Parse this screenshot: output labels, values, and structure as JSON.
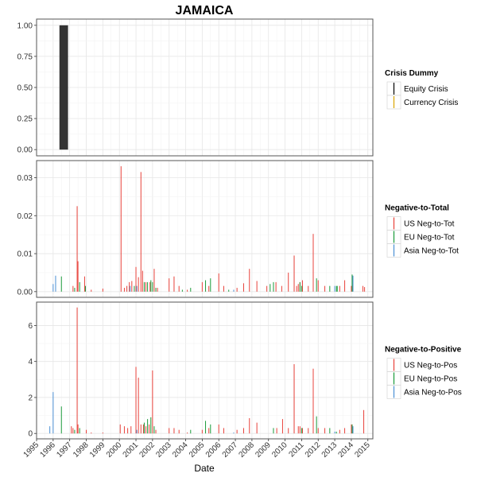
{
  "chart_data": {
    "type": "bar",
    "title": "JAMAICA",
    "xlabel": "Date",
    "x_ticks": [
      "1995",
      "1996",
      "1997",
      "1998",
      "1999",
      "2000",
      "2001",
      "2002",
      "2003",
      "2004",
      "2005",
      "2006",
      "2007",
      "2008",
      "2009",
      "2010",
      "2011",
      "2012",
      "2013",
      "2014",
      "2015"
    ],
    "xlim": [
      1995,
      2015.3
    ],
    "grid": true,
    "panels": [
      {
        "id": "crisis",
        "ylim": [
          -0.05,
          1.05
        ],
        "y_ticks": [
          0.0,
          0.25,
          0.5,
          0.75,
          1.0
        ],
        "y_tick_labels": [
          "0.00",
          "0.25",
          "0.50",
          "0.75",
          "1.00"
        ],
        "legend_title": "Crisis Dummy",
        "series": [
          {
            "name": "Equity Crisis",
            "color": "#000000",
            "bars": []
          },
          {
            "name": "Currency Crisis",
            "color": "#d9a400",
            "bars": []
          }
        ],
        "blocks": [
          {
            "x_start": 1996.38,
            "x_end": 1996.9,
            "value": 1.0,
            "color": "#333333"
          }
        ]
      },
      {
        "id": "neg-to-total",
        "ylim": [
          -0.0015,
          0.0345
        ],
        "y_ticks": [
          0.0,
          0.01,
          0.02,
          0.03
        ],
        "y_tick_labels": [
          "0.00",
          "0.01",
          "0.02",
          "0.03"
        ],
        "legend_title": "Negative-to-Total",
        "series": [
          {
            "name": "US Neg-to-Tot",
            "color": "#e8413a",
            "bars": [
              [
                1997.2,
                0.0015
              ],
              [
                1997.45,
                0.0225
              ],
              [
                1997.5,
                0.008
              ],
              [
                1997.9,
                0.004
              ],
              [
                1998.3,
                0.0005
              ],
              [
                1999.0,
                0.0008
              ],
              [
                2000.1,
                0.033
              ],
              [
                2000.3,
                0.001
              ],
              [
                2000.45,
                0.0015
              ],
              [
                2000.6,
                0.0025
              ],
              [
                2000.75,
                0.0028
              ],
              [
                2001.0,
                0.0065
              ],
              [
                2001.15,
                0.0038
              ],
              [
                2001.3,
                0.0315
              ],
              [
                2001.4,
                0.0055
              ],
              [
                2001.6,
                0.0025
              ],
              [
                2001.85,
                0.0025
              ],
              [
                2002.1,
                0.006
              ],
              [
                2002.3,
                0.001
              ],
              [
                2003.0,
                0.0035
              ],
              [
                2003.3,
                0.004
              ],
              [
                2003.6,
                0.0015
              ],
              [
                2004.1,
                0.0005
              ],
              [
                2005.0,
                0.0025
              ],
              [
                2005.4,
                0.0015
              ],
              [
                2006.0,
                0.0048
              ],
              [
                2006.3,
                0.0015
              ],
              [
                2007.1,
                0.001
              ],
              [
                2007.5,
                0.0022
              ],
              [
                2007.85,
                0.006
              ],
              [
                2008.3,
                0.0028
              ],
              [
                2008.9,
                0.0015
              ],
              [
                2009.45,
                0.0025
              ],
              [
                2009.8,
                0.0015
              ],
              [
                2010.2,
                0.005
              ],
              [
                2010.55,
                0.0095
              ],
              [
                2010.7,
                0.0015
              ],
              [
                2010.8,
                0.002
              ],
              [
                2010.9,
                0.0025
              ],
              [
                2011.05,
                0.003
              ],
              [
                2011.4,
                0.0015
              ],
              [
                2011.7,
                0.0152
              ],
              [
                2012.0,
                0.003
              ],
              [
                2012.4,
                0.0015
              ],
              [
                2013.3,
                0.0015
              ],
              [
                2013.6,
                0.003
              ],
              [
                2014.0,
                0.0015
              ],
              [
                2014.7,
                0.0015
              ],
              [
                2014.8,
                0.0012
              ]
            ]
          },
          {
            "name": "EU Neg-to-Tot",
            "color": "#1a9a3a",
            "bars": [
              [
                1996.5,
                0.004
              ],
              [
                1997.3,
                0.001
              ],
              [
                1997.6,
                0.0025
              ],
              [
                1997.95,
                0.0015
              ],
              [
                2000.9,
                0.0015
              ],
              [
                2001.5,
                0.0025
              ],
              [
                2001.7,
                0.0025
              ],
              [
                2001.9,
                0.003
              ],
              [
                2002.0,
                0.0025
              ],
              [
                2002.2,
                0.001
              ],
              [
                2003.8,
                0.0005
              ],
              [
                2004.3,
                0.001
              ],
              [
                2005.2,
                0.003
              ],
              [
                2005.5,
                0.0035
              ],
              [
                2006.6,
                0.0005
              ],
              [
                2009.1,
                0.002
              ],
              [
                2009.3,
                0.0025
              ],
              [
                2010.9,
                0.0025
              ],
              [
                2011.0,
                0.0015
              ],
              [
                2011.9,
                0.0035
              ],
              [
                2012.7,
                0.0015
              ],
              [
                2013.1,
                0.0015
              ],
              [
                2013.15,
                0.0015
              ],
              [
                2014.05,
                0.0045
              ]
            ]
          },
          {
            "name": "Asia Neg-to-Tot",
            "color": "#4a8fd4",
            "bars": [
              [
                1996.0,
                0.002
              ],
              [
                1996.15,
                0.0042
              ],
              [
                2000.65,
                0.0015
              ],
              [
                2001.05,
                0.0015
              ],
              [
                2006.9,
                0.0005
              ],
              [
                2013.0,
                0.0015
              ],
              [
                2014.1,
                0.0042
              ]
            ]
          }
        ]
      },
      {
        "id": "neg-to-positive",
        "ylim": [
          -0.3,
          7.3
        ],
        "y_ticks": [
          0,
          2,
          4,
          6
        ],
        "y_tick_labels": [
          "0",
          "2",
          "4",
          "6"
        ],
        "legend_title": "Negative-to-Positive",
        "series": [
          {
            "name": "US Neg-to-Pos",
            "color": "#e8413a",
            "bars": [
              [
                1997.1,
                0.4
              ],
              [
                1997.2,
                0.3
              ],
              [
                1997.45,
                7.0
              ],
              [
                1997.5,
                0.5
              ],
              [
                1998.0,
                0.2
              ],
              [
                1998.3,
                0.05
              ],
              [
                1999.0,
                0.05
              ],
              [
                2000.05,
                0.5
              ],
              [
                2000.3,
                0.4
              ],
              [
                2000.5,
                0.3
              ],
              [
                2000.7,
                0.4
              ],
              [
                2001.0,
                3.7
              ],
              [
                2001.15,
                3.1
              ],
              [
                2001.3,
                0.5
              ],
              [
                2001.45,
                0.5
              ],
              [
                2001.6,
                0.4
              ],
              [
                2001.8,
                0.5
              ],
              [
                2002.0,
                3.5
              ],
              [
                2002.2,
                0.2
              ],
              [
                2003.0,
                0.3
              ],
              [
                2003.3,
                0.3
              ],
              [
                2003.6,
                0.2
              ],
              [
                2004.1,
                0.05
              ],
              [
                2005.0,
                0.2
              ],
              [
                2005.4,
                0.3
              ],
              [
                2006.0,
                0.5
              ],
              [
                2006.3,
                0.3
              ],
              [
                2007.1,
                0.2
              ],
              [
                2007.5,
                0.3
              ],
              [
                2007.85,
                0.85
              ],
              [
                2008.3,
                0.6
              ],
              [
                2009.5,
                0.3
              ],
              [
                2009.85,
                0.8
              ],
              [
                2010.2,
                0.3
              ],
              [
                2010.55,
                3.85
              ],
              [
                2010.8,
                0.4
              ],
              [
                2010.9,
                0.4
              ],
              [
                2011.05,
                0.3
              ],
              [
                2011.4,
                0.3
              ],
              [
                2011.7,
                3.6
              ],
              [
                2012.0,
                0.3
              ],
              [
                2012.4,
                0.3
              ],
              [
                2013.3,
                0.2
              ],
              [
                2013.6,
                0.3
              ],
              [
                2014.0,
                0.5
              ],
              [
                2014.75,
                1.3
              ]
            ]
          },
          {
            "name": "EU Neg-to-Pos",
            "color": "#1a9a3a",
            "bars": [
              [
                1996.5,
                1.5
              ],
              [
                1997.3,
                0.2
              ],
              [
                1997.6,
                0.3
              ],
              [
                2001.5,
                0.6
              ],
              [
                2001.7,
                0.8
              ],
              [
                2001.9,
                0.9
              ],
              [
                2002.1,
                0.4
              ],
              [
                2004.3,
                0.2
              ],
              [
                2005.2,
                0.7
              ],
              [
                2005.5,
                0.5
              ],
              [
                2009.3,
                0.3
              ],
              [
                2011.0,
                0.3
              ],
              [
                2011.9,
                0.95
              ],
              [
                2012.7,
                0.3
              ],
              [
                2013.1,
                0.1
              ],
              [
                2014.05,
                0.5
              ]
            ]
          },
          {
            "name": "Asia Neg-to-Pos",
            "color": "#4a8fd4",
            "bars": [
              [
                1995.8,
                0.4
              ],
              [
                1996.0,
                2.3
              ],
              [
                2001.05,
                0.2
              ],
              [
                2006.9,
                0.05
              ],
              [
                2013.0,
                0.1
              ],
              [
                2014.1,
                0.4
              ]
            ]
          }
        ]
      }
    ]
  }
}
